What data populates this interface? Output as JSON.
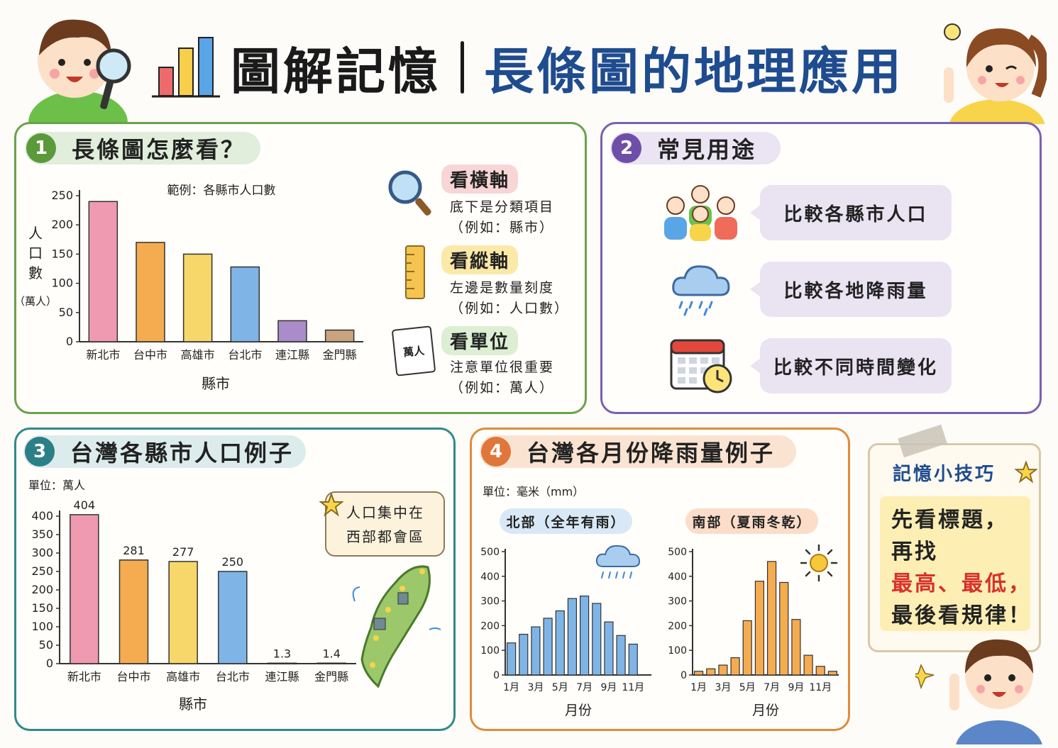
{
  "header": {
    "title": "圖解記憶",
    "subtitle": "長條圖的地理應用"
  },
  "colors": {
    "green": "#5b9a3a",
    "purple": "#6e4ea8",
    "teal": "#2b7f86",
    "orange": "#e0763a",
    "pink": "#ef9ab0",
    "orangeBar": "#f5ac50",
    "yellow": "#f7d76a",
    "blue": "#7fb5e6",
    "violet": "#a98cc9",
    "tan": "#c9a37e"
  },
  "panel1": {
    "number": "1",
    "title": "長條圖怎麼看？",
    "callouts": [
      {
        "head": "看橫軸",
        "line1": "底下是分類項目",
        "line2": "（例如：縣市）",
        "icon": "magnifier-icon"
      },
      {
        "head": "看縱軸",
        "line1": "左邊是數量刻度",
        "line2": "（例如：人口數）",
        "icon": "ruler-icon"
      },
      {
        "head": "看單位",
        "line1": "注意單位很重要",
        "line2": "（例如：萬人）",
        "icon": "notepad-icon",
        "icon_text": "萬人"
      }
    ]
  },
  "panel2": {
    "number": "2",
    "title": "常見用途",
    "uses": [
      {
        "label": "比較各縣市人口",
        "icon": "people-icon"
      },
      {
        "label": "比較各地降雨量",
        "icon": "rain-cloud-icon"
      },
      {
        "label": "比較不同時間變化",
        "icon": "calendar-clock-icon"
      }
    ]
  },
  "panel3": {
    "number": "3",
    "title": "台灣各縣市人口例子",
    "callout_line1": "人口集中在",
    "callout_line2": "西部都會區",
    "map_icon": "taiwan-map-icon"
  },
  "panel4": {
    "number": "4",
    "title": "台灣各月份降雨量例子",
    "unit": "單位：毫米（mm）"
  },
  "tip": {
    "title": "記憶小技巧",
    "line1": "先看標題，",
    "line2": "再找",
    "line3": "最高、最低，",
    "line4": "最後看規律！"
  },
  "chart_data": [
    {
      "id": "p1",
      "type": "bar",
      "title": "範例：各縣市人口數",
      "categories": [
        "新北市",
        "台中市",
        "高雄市",
        "台北市",
        "連江縣",
        "金門縣"
      ],
      "values": [
        240,
        170,
        150,
        128,
        36,
        20
      ],
      "ylabel": "人口數",
      "yunit": "（萬人）",
      "xlabel": "縣市",
      "ylim": [
        0,
        250
      ],
      "yticks": [
        0,
        50,
        100,
        150,
        200,
        250
      ]
    },
    {
      "id": "p3",
      "type": "bar",
      "title": "單位：萬人",
      "categories": [
        "新北市",
        "台中市",
        "高雄市",
        "台北市",
        "連江縣",
        "金門縣"
      ],
      "values": [
        404,
        281,
        277,
        250,
        1.3,
        1.4
      ],
      "data_labels": [
        "404",
        "281",
        "277",
        "250",
        "1.3",
        "1.4"
      ],
      "xlabel": "縣市",
      "ylim": [
        0,
        400
      ],
      "yticks": [
        0,
        50,
        100,
        150,
        200,
        250,
        300,
        350,
        400
      ]
    },
    {
      "id": "north",
      "type": "bar",
      "title": "北部（全年有雨）",
      "categories": [
        "1月",
        "2月",
        "3月",
        "4月",
        "5月",
        "6月",
        "7月",
        "8月",
        "9月",
        "10月",
        "11月",
        "12月"
      ],
      "tick_labels": [
        "1月",
        "3月",
        "5月",
        "7月",
        "9月",
        "11月"
      ],
      "values": [
        130,
        165,
        195,
        230,
        260,
        310,
        320,
        290,
        215,
        160,
        125,
        0
      ],
      "xlabel": "月份",
      "ylim": [
        0,
        500
      ],
      "yticks": [
        0,
        100,
        200,
        300,
        400,
        500
      ]
    },
    {
      "id": "south",
      "type": "bar",
      "title": "南部（夏雨冬乾）",
      "categories": [
        "1月",
        "2月",
        "3月",
        "4月",
        "5月",
        "6月",
        "7月",
        "8月",
        "9月",
        "10月",
        "11月",
        "12月"
      ],
      "tick_labels": [
        "1月",
        "3月",
        "5月",
        "7月",
        "9月",
        "11月"
      ],
      "values": [
        15,
        25,
        40,
        70,
        220,
        380,
        460,
        375,
        225,
        80,
        35,
        15
      ],
      "xlabel": "月份",
      "ylim": [
        0,
        500
      ],
      "yticks": [
        0,
        100,
        200,
        300,
        400,
        500
      ]
    }
  ]
}
